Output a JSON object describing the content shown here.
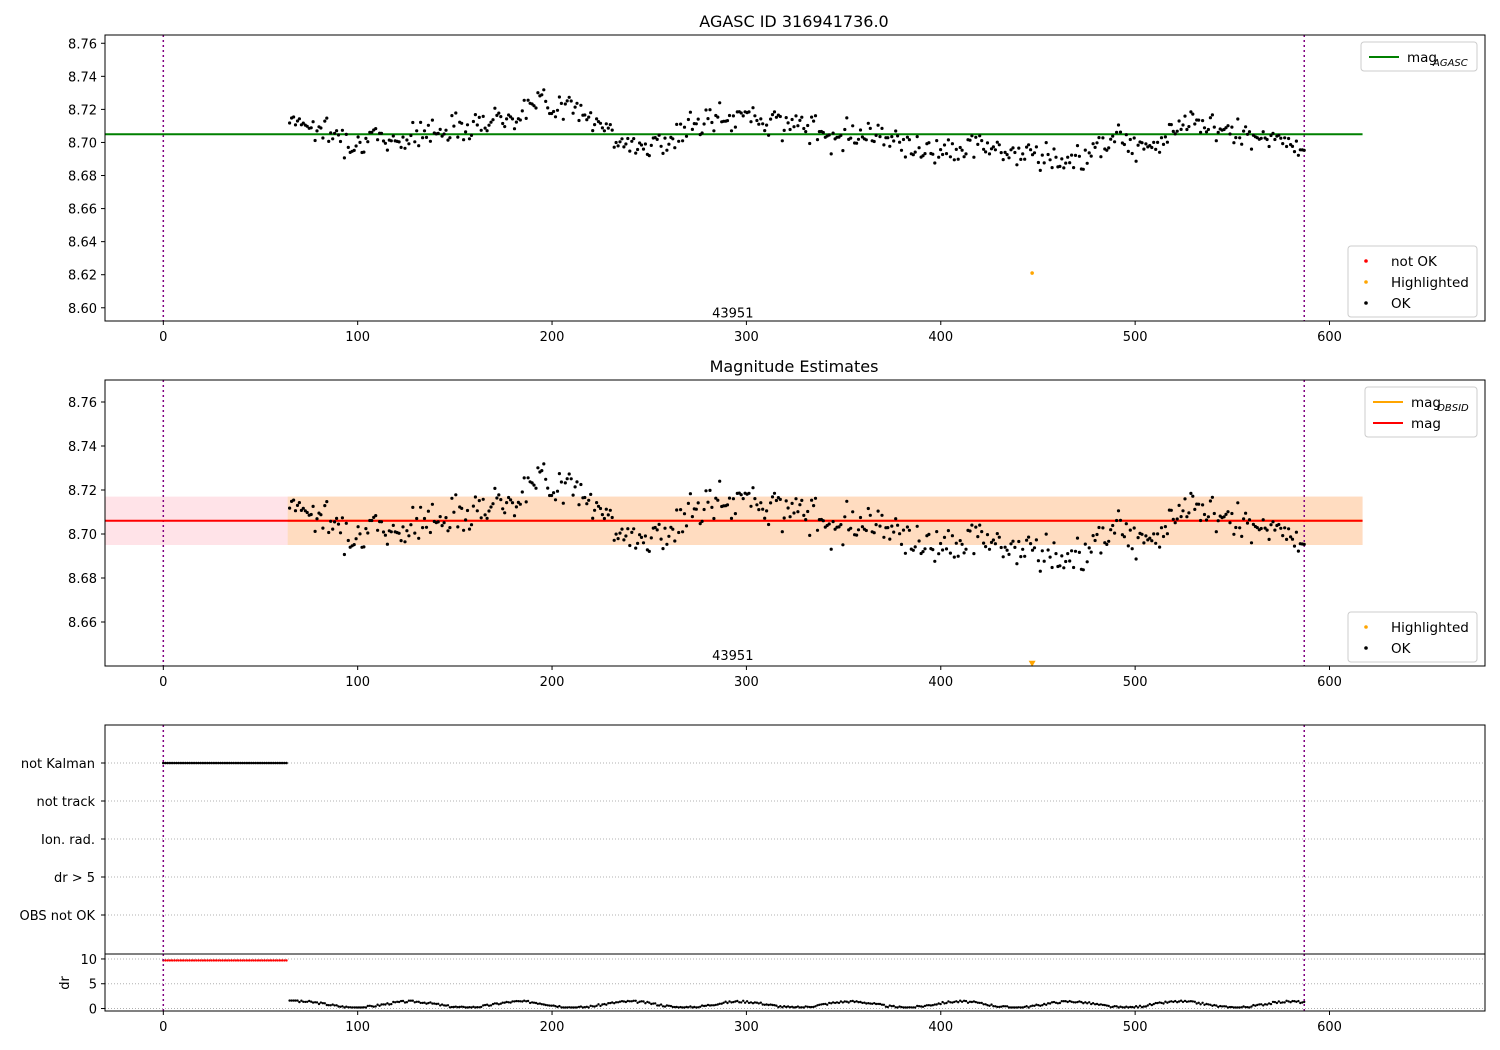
{
  "colors": {
    "ok": "#000000",
    "not_ok": "#ff0000",
    "highlighted": "#ffa500",
    "agasc": "#008000",
    "mag": "#ff0000",
    "mag_obsid": "#ffa500",
    "mag_band": "#ffc0cb",
    "obsid_band": "#ffdab9",
    "event_line": "#800080"
  },
  "chart_data": [
    {
      "type": "scatter",
      "title": "AGASC ID 316941736.0",
      "xlim": [
        -30,
        680
      ],
      "ylim": [
        8.592,
        8.765
      ],
      "xticks": [
        0,
        100,
        200,
        300,
        400,
        500,
        600
      ],
      "yticks": [
        8.6,
        8.62,
        8.64,
        8.66,
        8.68,
        8.7,
        8.72,
        8.74,
        8.76
      ],
      "obsid_boundaries": [
        0,
        587
      ],
      "obsid_annotation": {
        "text": "43951",
        "x": 293,
        "y": 8.597
      },
      "lines": [
        {
          "name": "mag",
          "subscript": "AGASC",
          "y": 8.705,
          "x": [
            -30,
            617
          ],
          "color": "#008000"
        }
      ],
      "series": [
        {
          "name": "not OK",
          "color": "#ff0000",
          "points": []
        },
        {
          "name": "Highlighted",
          "color": "#ffa500",
          "points": [
            [
              447,
              8.621
            ]
          ]
        },
        {
          "name": "OK",
          "color": "#000000",
          "x_range": [
            65,
            587
          ],
          "n": 520
        }
      ],
      "legends": [
        {
          "position": "upper right",
          "entries": [
            {
              "kind": "line",
              "label": "mag",
              "sub": "AGASC",
              "color": "#008000"
            }
          ]
        },
        {
          "position": "lower right",
          "entries": [
            {
              "kind": "dot",
              "label": "not OK",
              "color": "#ff0000"
            },
            {
              "kind": "dot",
              "label": "Highlighted",
              "color": "#ffa500"
            },
            {
              "kind": "dot",
              "label": "OK",
              "color": "#000000"
            }
          ]
        }
      ]
    },
    {
      "type": "scatter",
      "title": "Magnitude Estimates",
      "xlim": [
        -30,
        680
      ],
      "ylim": [
        8.64,
        8.77
      ],
      "xticks": [
        0,
        100,
        200,
        300,
        400,
        500,
        600
      ],
      "yticks": [
        8.66,
        8.68,
        8.7,
        8.72,
        8.74,
        8.76
      ],
      "obsid_boundaries": [
        0,
        587
      ],
      "obsid_annotation": {
        "text": "43951",
        "x": 293,
        "y": 8.645
      },
      "bands": [
        {
          "name": "mag range",
          "y": [
            8.695,
            8.717
          ],
          "x": [
            -30,
            617
          ],
          "color": "#ffc0cb"
        },
        {
          "name": "obsid range",
          "y": [
            8.695,
            8.717
          ],
          "x": [
            64,
            617
          ],
          "color": "#ffdab9"
        }
      ],
      "lines": [
        {
          "name": "mag",
          "subscript": "OBSID",
          "y": 8.706,
          "x": [
            64,
            617
          ],
          "color": "#ffa500"
        },
        {
          "name": "mag",
          "y": 8.706,
          "x": [
            -30,
            617
          ],
          "color": "#ff0000"
        }
      ],
      "series": [
        {
          "name": "Highlighted",
          "color": "#ffa500",
          "marker": "triangle-down",
          "points": [
            [
              447,
              8.641
            ]
          ]
        },
        {
          "name": "OK",
          "color": "#000000",
          "x_range": [
            65,
            587
          ],
          "n": 520
        }
      ],
      "legends": [
        {
          "position": "upper right",
          "entries": [
            {
              "kind": "line",
              "label": "mag",
              "sub": "OBSID",
              "color": "#ffa500"
            },
            {
              "kind": "line",
              "label": "mag",
              "color": "#ff0000"
            }
          ]
        },
        {
          "position": "lower right",
          "entries": [
            {
              "kind": "dot",
              "label": "Highlighted",
              "color": "#ffa500"
            },
            {
              "kind": "dot",
              "label": "OK",
              "color": "#000000"
            }
          ]
        }
      ]
    },
    {
      "type": "scatter",
      "xlim": [
        -30,
        680
      ],
      "xticks": [
        0,
        100,
        200,
        300,
        400,
        500,
        600
      ],
      "categories": [
        "not Kalman",
        "not track",
        "Ion. rad.",
        "dr > 5",
        "OBS not OK"
      ],
      "flags": [
        {
          "category": "not Kalman",
          "x_range": [
            0,
            64
          ],
          "color": "#000000"
        }
      ],
      "obsid_boundaries": [
        0,
        587
      ]
    },
    {
      "type": "scatter",
      "ylabel": "dr",
      "xlim": [
        -30,
        680
      ],
      "ylim": [
        -0.5,
        11
      ],
      "xticks": [
        0,
        100,
        200,
        300,
        400,
        500,
        600
      ],
      "yticks": [
        0,
        5,
        10
      ],
      "obsid_boundaries": [
        0,
        587
      ],
      "series": [
        {
          "name": "dr (not tracked)",
          "color": "#ff0000",
          "x_range": [
            0,
            64
          ],
          "y": 9.7
        },
        {
          "name": "dr",
          "color": "#000000",
          "x_range": [
            65,
            587
          ],
          "y_range": [
            0.2,
            2.0
          ]
        }
      ]
    }
  ]
}
